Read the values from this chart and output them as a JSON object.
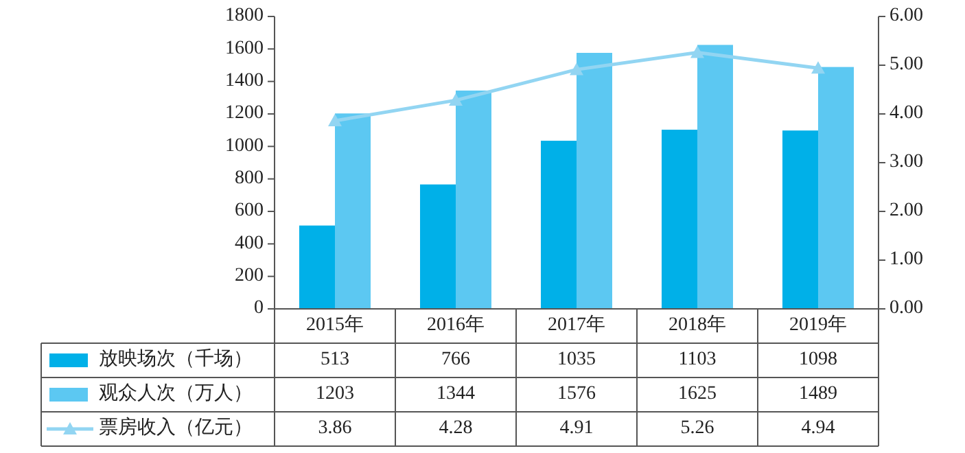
{
  "chart_data": {
    "type": "bar",
    "categories": [
      "2015年",
      "2016年",
      "2017年",
      "2018年",
      "2019年"
    ],
    "series": [
      {
        "name": "放映场次（千场）",
        "color": "#00b0e8",
        "values": [
          513,
          766,
          1035,
          1103,
          1098
        ]
      },
      {
        "name": "观众人次（万人）",
        "color": "#5cc8f2",
        "values": [
          1203,
          1344,
          1576,
          1625,
          1489
        ]
      },
      {
        "name": "票房收入（亿元）",
        "type": "line",
        "axis": "y2",
        "color": "#92d5f2",
        "marker": "triangle",
        "values": [
          3.86,
          4.28,
          4.91,
          5.26,
          4.94
        ]
      }
    ],
    "ylim": [
      0,
      1800
    ],
    "yticks": [
      0,
      200,
      400,
      600,
      800,
      1000,
      1200,
      1400,
      1600,
      1800
    ],
    "y2lim": [
      0,
      6
    ],
    "y2ticks": [
      {
        "value": 0,
        "label": "0.00"
      },
      {
        "value": 1,
        "label": "1.00"
      },
      {
        "value": 2,
        "label": "2.00"
      },
      {
        "value": 3,
        "label": "3.00"
      },
      {
        "value": 4,
        "label": "4.00"
      },
      {
        "value": 5,
        "label": "5.00"
      },
      {
        "value": 6,
        "label": "6.00"
      }
    ],
    "data_labels": true,
    "legend": "bottom left",
    "grid": false
  }
}
